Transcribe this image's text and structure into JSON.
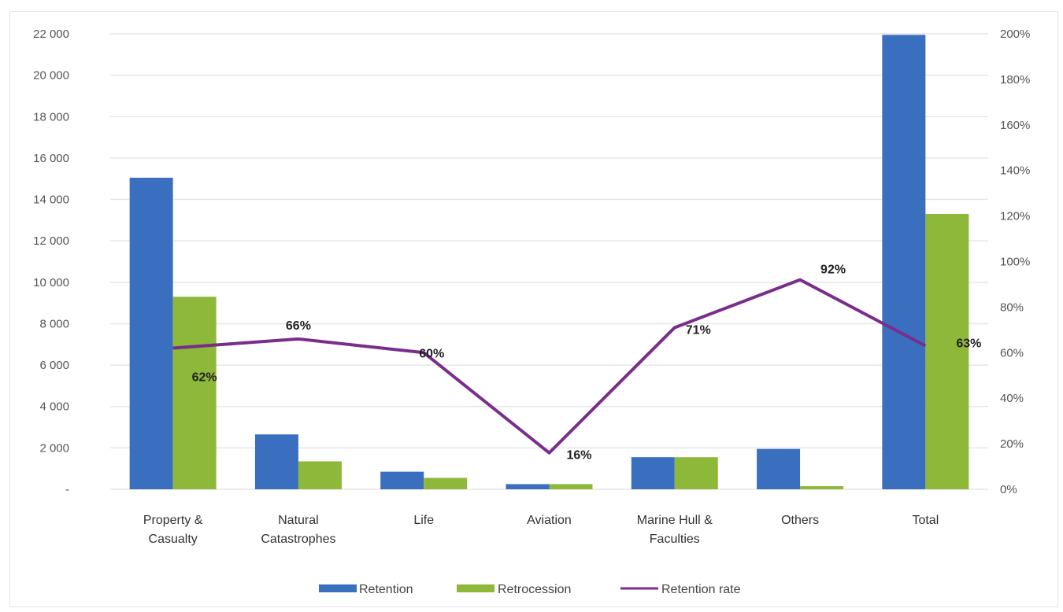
{
  "chart_data": {
    "type": "bar",
    "categories": [
      [
        "Property &",
        "Casualty"
      ],
      [
        "Natural",
        "Catastrophes"
      ],
      [
        "Life"
      ],
      [
        "Aviation"
      ],
      [
        "Marine Hull &",
        "Faculties"
      ],
      [
        "Others"
      ],
      [
        "Total"
      ]
    ],
    "series": [
      {
        "name": "Retention",
        "type": "bar",
        "axis": "left",
        "color": "#3a6fbf",
        "values": [
          15050,
          2650,
          850,
          250,
          1550,
          1950,
          21950
        ]
      },
      {
        "name": "Retrocession",
        "type": "bar",
        "axis": "left",
        "color": "#8db83a",
        "values": [
          9300,
          1350,
          550,
          250,
          1550,
          150,
          13300
        ]
      },
      {
        "name": "Retention rate",
        "type": "line",
        "axis": "right",
        "color": "#7a2d8c",
        "values": [
          0.62,
          0.66,
          0.6,
          0.16,
          0.71,
          0.92,
          0.63
        ]
      }
    ],
    "data_labels": [
      "62%",
      "66%",
      "60%",
      "16%",
      "71%",
      "92%",
      "63%"
    ],
    "left_axis": {
      "ylim": [
        0,
        22000
      ],
      "ticks": [
        "-",
        "2 000",
        "4 000",
        "6 000",
        "8 000",
        "10 000",
        "12 000",
        "14 000",
        "16 000",
        "18 000",
        "20 000",
        "22 000"
      ]
    },
    "right_axis": {
      "ylim": [
        0,
        2.0
      ],
      "ticks": [
        "0%",
        "20%",
        "40%",
        "60%",
        "80%",
        "100%",
        "120%",
        "140%",
        "160%",
        "180%",
        "200%"
      ]
    },
    "grid": true,
    "legend_position": "bottom"
  }
}
